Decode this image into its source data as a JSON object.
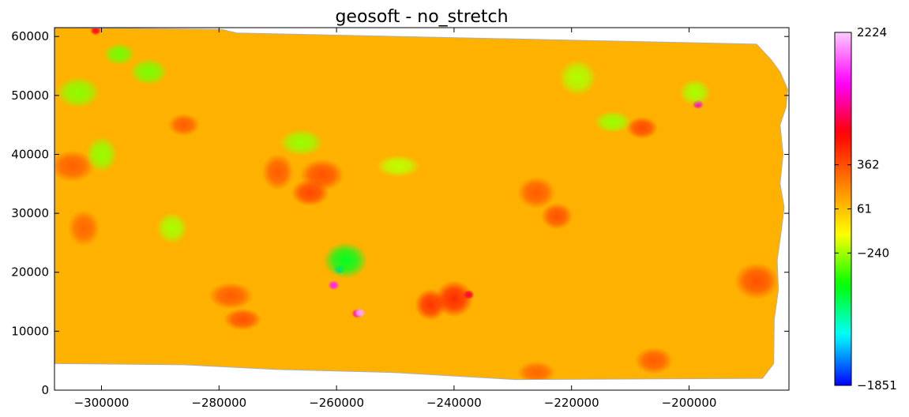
{
  "chart_data": {
    "type": "heatmap",
    "title": "geosoft - no_stretch",
    "xlabel": "",
    "ylabel": "",
    "xlim": [
      -308000,
      -183000
    ],
    "ylim": [
      0,
      61500
    ],
    "x_ticks": [
      -300000,
      -280000,
      -260000,
      -240000,
      -220000,
      -200000
    ],
    "x_tick_labels": [
      "−300000",
      "−280000",
      "−260000",
      "−240000",
      "−220000",
      "−200000"
    ],
    "y_ticks": [
      0,
      10000,
      20000,
      30000,
      40000,
      50000,
      60000
    ],
    "y_tick_labels": [
      "0",
      "10000",
      "20000",
      "30000",
      "40000",
      "50000",
      "60000"
    ],
    "colorbar": {
      "min": -1851,
      "max": 2224,
      "ticks": [
        -1851,
        -240,
        61,
        362,
        2224
      ],
      "tick_labels": [
        "−1851",
        "−240",
        "61",
        "362",
        "2224"
      ]
    },
    "colormap": [
      "#0000ff",
      "#00ffff",
      "#00ff00",
      "#ffff00",
      "#ff8000",
      "#ff0000",
      "#ff00ff",
      "#ffccff"
    ],
    "background_value": 100,
    "grid": false,
    "features": [
      {
        "kind": "high",
        "x": -286000,
        "y": 45000,
        "value": 330
      },
      {
        "kind": "high",
        "x": -264500,
        "y": 33500,
        "value": 420
      },
      {
        "kind": "high",
        "x": -262500,
        "y": 36500,
        "value": 360
      },
      {
        "kind": "high",
        "x": -270000,
        "y": 37000,
        "value": 330
      },
      {
        "kind": "high",
        "x": -276000,
        "y": 12000,
        "value": 360
      },
      {
        "kind": "high",
        "x": -278000,
        "y": 16000,
        "value": 330
      },
      {
        "kind": "high",
        "x": -244000,
        "y": 14500,
        "value": 520
      },
      {
        "kind": "high",
        "x": -240000,
        "y": 15500,
        "value": 560
      },
      {
        "kind": "high",
        "x": -237500,
        "y": 16200,
        "value": 950
      },
      {
        "kind": "high",
        "x": -222500,
        "y": 29500,
        "value": 360
      },
      {
        "kind": "high",
        "x": -226000,
        "y": 33500,
        "value": 330
      },
      {
        "kind": "high",
        "x": -188500,
        "y": 18500,
        "value": 360
      },
      {
        "kind": "high",
        "x": -208000,
        "y": 44500,
        "value": 400
      },
      {
        "kind": "high",
        "x": -206000,
        "y": 5000,
        "value": 330
      },
      {
        "kind": "high",
        "x": -305000,
        "y": 38000,
        "value": 320
      },
      {
        "kind": "high",
        "x": -303000,
        "y": 27500,
        "value": 300
      },
      {
        "kind": "high",
        "x": -226000,
        "y": 3000,
        "value": 300
      },
      {
        "kind": "high",
        "x": -256500,
        "y": 13000,
        "value": 1350
      },
      {
        "kind": "high",
        "x": -256000,
        "y": 13100,
        "value": 2100
      },
      {
        "kind": "high",
        "x": -260500,
        "y": 17800,
        "value": 1600
      },
      {
        "kind": "high",
        "x": -198500,
        "y": 48500,
        "value": 1400
      },
      {
        "kind": "high",
        "x": -301000,
        "y": 61000,
        "value": 900
      },
      {
        "kind": "low",
        "x": -259500,
        "y": 20500,
        "value": -1450
      },
      {
        "kind": "low",
        "x": -258500,
        "y": 22000,
        "value": -700
      },
      {
        "kind": "low",
        "x": -297000,
        "y": 57000,
        "value": -350
      },
      {
        "kind": "low",
        "x": -292000,
        "y": 54000,
        "value": -330
      },
      {
        "kind": "low",
        "x": -304000,
        "y": 50500,
        "value": -290
      },
      {
        "kind": "low",
        "x": -300000,
        "y": 40000,
        "value": -270
      },
      {
        "kind": "low",
        "x": -213000,
        "y": 45500,
        "value": -250
      },
      {
        "kind": "low",
        "x": -266000,
        "y": 42000,
        "value": -260
      },
      {
        "kind": "low",
        "x": -288000,
        "y": 27500,
        "value": -230
      },
      {
        "kind": "low",
        "x": -219000,
        "y": 53000,
        "value": -220
      },
      {
        "kind": "low",
        "x": -249500,
        "y": 38000,
        "value": -200
      },
      {
        "kind": "low",
        "x": -199000,
        "y": 50500,
        "value": -230
      }
    ]
  }
}
